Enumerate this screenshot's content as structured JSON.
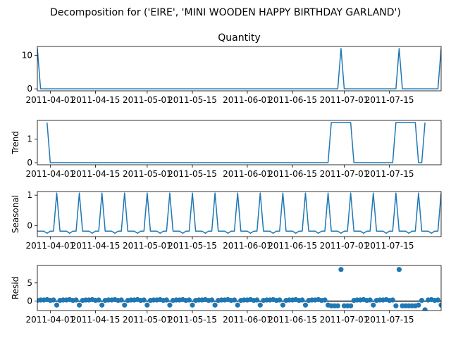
{
  "figure": {
    "suptitle": "Decomposition for ('EIRE', 'MINI WOODEN HAPPY BIRTHDAY GARLAND')"
  },
  "colors": {
    "series": "#1f77b4",
    "axis": "#000000",
    "zero_line": "#000000"
  },
  "chart_data": [
    {
      "type": "line",
      "title": "Quantity",
      "ylabel": "",
      "x_range": [
        "2011-03-28",
        "2011-07-31"
      ],
      "ylim": [
        -0.6,
        12.6
      ],
      "yticks": [
        0,
        10
      ],
      "xticks": [
        "2011-04-01",
        "2011-04-15",
        "2011-05-01",
        "2011-05-15",
        "2011-06-01",
        "2011-06-15",
        "2011-07-01",
        "2011-07-15"
      ],
      "points": [
        [
          "2011-03-28",
          12
        ],
        [
          "2011-03-29",
          0
        ],
        [
          "2011-06-29",
          0
        ],
        [
          "2011-06-30",
          12
        ],
        [
          "2011-07-01",
          0
        ],
        [
          "2011-07-14",
          0
        ],
        [
          "2011-07-15",
          0
        ],
        [
          "2011-07-17",
          0
        ],
        [
          "2011-07-18",
          12
        ],
        [
          "2011-07-19",
          0
        ],
        [
          "2011-07-30",
          0
        ],
        [
          "2011-07-31",
          12
        ]
      ]
    },
    {
      "type": "line",
      "title": "",
      "ylabel": "Trend",
      "x_range": [
        "2011-03-28",
        "2011-07-31"
      ],
      "ylim": [
        -0.09,
        1.8
      ],
      "yticks": [
        0,
        1
      ],
      "xticks": [
        "2011-04-01",
        "2011-04-15",
        "2011-05-01",
        "2011-05-15",
        "2011-06-01",
        "2011-06-15",
        "2011-07-01",
        "2011-07-15"
      ],
      "points": [
        [
          "2011-03-31",
          1.71
        ],
        [
          "2011-04-01",
          0
        ],
        [
          "2011-06-26",
          0
        ],
        [
          "2011-06-27",
          1.71
        ],
        [
          "2011-07-03",
          1.71
        ],
        [
          "2011-07-04",
          0
        ],
        [
          "2011-07-16",
          0
        ],
        [
          "2011-07-17",
          1.71
        ],
        [
          "2011-07-23",
          1.71
        ],
        [
          "2011-07-24",
          0
        ],
        [
          "2011-07-25",
          0
        ],
        [
          "2011-07-26",
          1.71
        ]
      ]
    },
    {
      "type": "line",
      "title": "",
      "ylabel": "Seasonal",
      "x_range": [
        "2011-03-28",
        "2011-07-31"
      ],
      "ylim": [
        -0.36,
        1.12
      ],
      "yticks": [
        0,
        1
      ],
      "xticks": [
        "2011-04-01",
        "2011-04-15",
        "2011-05-01",
        "2011-05-15",
        "2011-06-01",
        "2011-06-15",
        "2011-07-01",
        "2011-07-15"
      ],
      "period": 7,
      "first_peak": "2011-04-03",
      "week_pattern": [
        1.07,
        -0.18,
        -0.18,
        -0.18,
        -0.25,
        -0.18,
        -0.18
      ]
    },
    {
      "type": "scatter",
      "title": "",
      "ylabel": "Resid",
      "x_range": [
        "2011-03-28",
        "2011-07-31"
      ],
      "ylim": [
        -2.6,
        9.8
      ],
      "yticks": [
        0,
        5
      ],
      "xticks": [
        "2011-04-01",
        "2011-04-15",
        "2011-05-01",
        "2011-05-15",
        "2011-06-01",
        "2011-06-15",
        "2011-07-01",
        "2011-07-15"
      ],
      "zero_line": true,
      "normal_pattern": [
        -1.1,
        0.2,
        0.3,
        0.3,
        0.4,
        0.2,
        0.3
      ],
      "overrides": [
        [
          "2011-06-27",
          -1.3
        ],
        [
          "2011-06-28",
          -1.3
        ],
        [
          "2011-06-29",
          -1.3
        ],
        [
          "2011-06-30",
          8.7
        ],
        [
          "2011-07-01",
          -1.3
        ],
        [
          "2011-07-02",
          -1.3
        ],
        [
          "2011-07-03",
          -1.3
        ],
        [
          "2011-07-17",
          -1.3
        ],
        [
          "2011-07-18",
          8.7
        ],
        [
          "2011-07-19",
          -1.3
        ],
        [
          "2011-07-20",
          -1.3
        ],
        [
          "2011-07-21",
          -1.3
        ],
        [
          "2011-07-22",
          -1.3
        ],
        [
          "2011-07-23",
          -1.3
        ],
        [
          "2011-07-26",
          -2.4
        ]
      ]
    }
  ]
}
